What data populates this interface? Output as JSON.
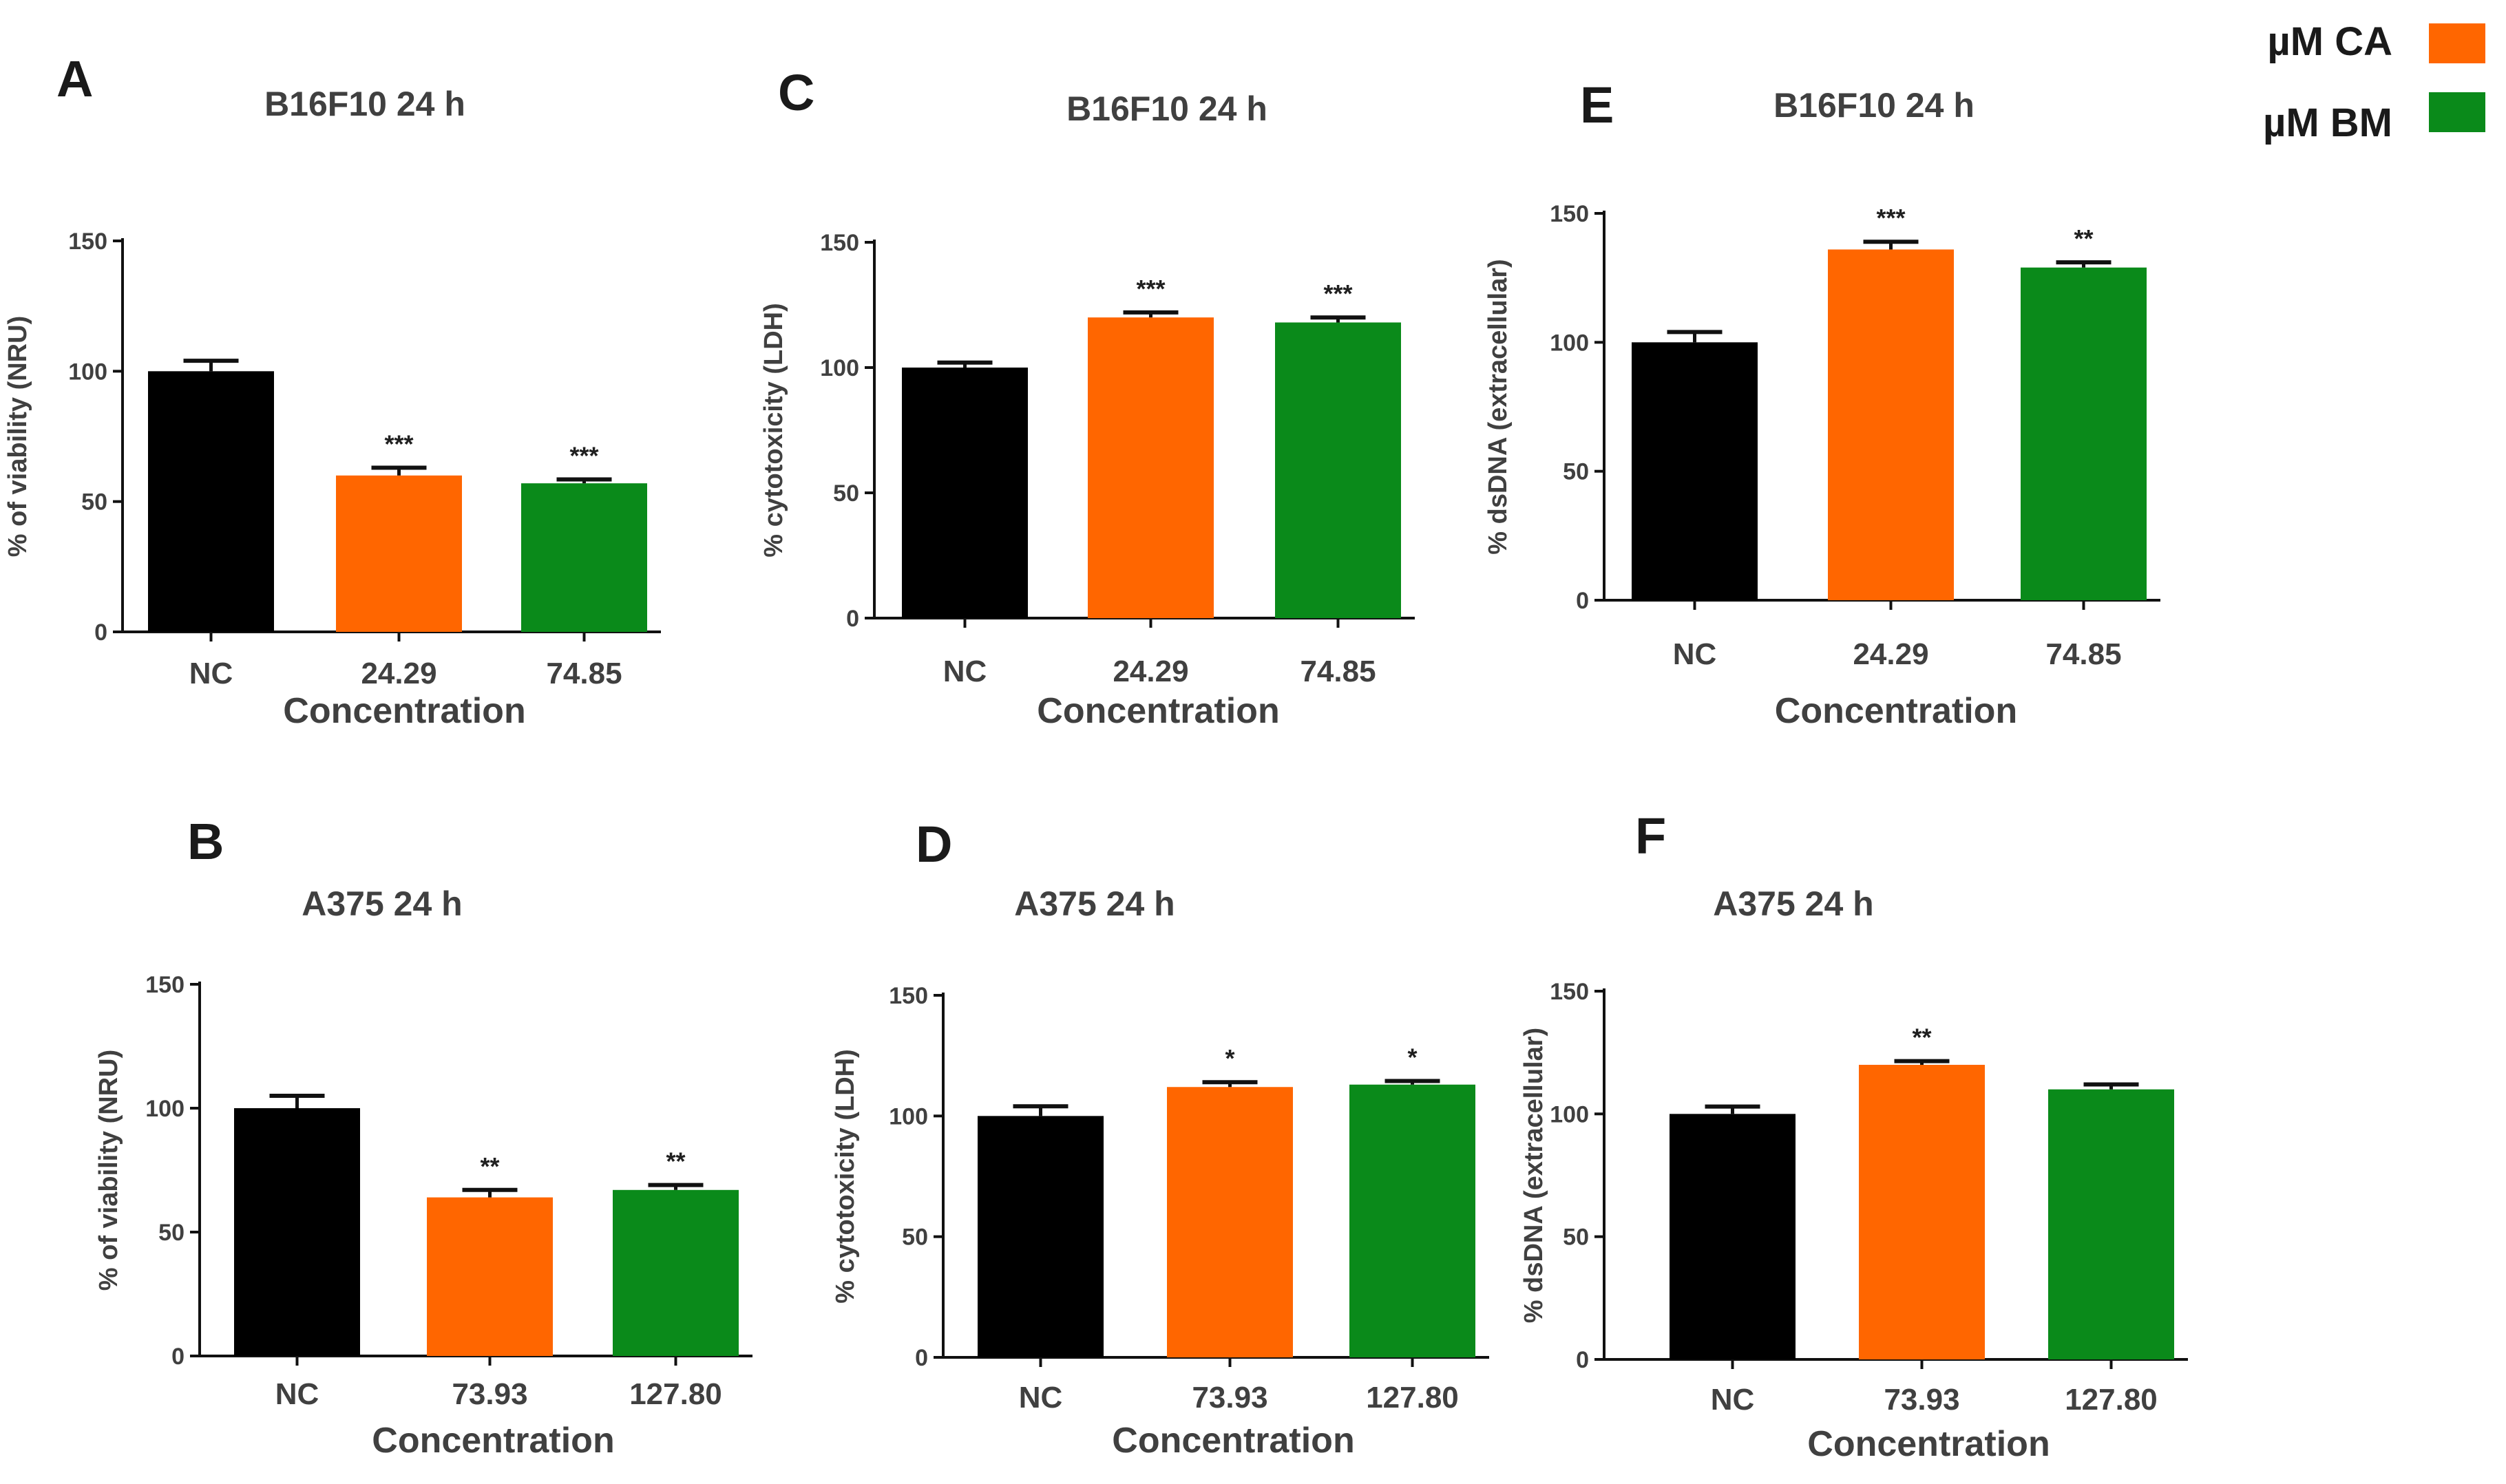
{
  "legend": [
    {
      "label": "µM CA",
      "color": "#ff6600"
    },
    {
      "label": "µM BM",
      "color": "#0a8a1a"
    }
  ],
  "chart_data": [
    {
      "panel": "A",
      "type": "bar",
      "title": "B16F10 24 h",
      "ylabel": "% of viability (NRU)",
      "xlabel": "Concentration",
      "ylim": [
        0,
        150
      ],
      "yticks": [
        "0",
        "50",
        "100",
        "150"
      ],
      "categories": [
        "NC",
        "24.29",
        "74.85"
      ],
      "values": [
        100,
        60,
        57
      ],
      "errors": [
        4,
        3,
        1.5
      ],
      "significance": [
        "",
        "***",
        "***"
      ],
      "colors": [
        "#000000",
        "#ff6600",
        "#0a8a1a"
      ]
    },
    {
      "panel": "C",
      "type": "bar",
      "title": "B16F10 24 h",
      "ylabel": "% cytotoxicity (LDH)",
      "xlabel": "Concentration",
      "ylim": [
        0,
        150
      ],
      "yticks": [
        "0",
        "50",
        "100",
        "150"
      ],
      "categories": [
        "NC",
        "24.29",
        "74.85"
      ],
      "values": [
        100,
        120,
        118
      ],
      "errors": [
        2,
        2,
        2
      ],
      "significance": [
        "",
        "***",
        "***"
      ],
      "colors": [
        "#000000",
        "#ff6600",
        "#0a8a1a"
      ]
    },
    {
      "panel": "E",
      "type": "bar",
      "title": "B16F10 24 h",
      "ylabel": "% dsDNA (extracellular)",
      "xlabel": "Concentration",
      "ylim": [
        0,
        150
      ],
      "yticks": [
        "0",
        "50",
        "100",
        "150"
      ],
      "categories": [
        "NC",
        "24.29",
        "74.85"
      ],
      "values": [
        100,
        136,
        129
      ],
      "errors": [
        4,
        3,
        2
      ],
      "significance": [
        "",
        "***",
        "**"
      ],
      "colors": [
        "#000000",
        "#ff6600",
        "#0a8a1a"
      ]
    },
    {
      "panel": "B",
      "type": "bar",
      "title": "A375 24 h",
      "ylabel": "% of viability (NRU)",
      "xlabel": "Concentration",
      "ylim": [
        0,
        150
      ],
      "yticks": [
        "0",
        "50",
        "100",
        "150"
      ],
      "categories": [
        "NC",
        "73.93",
        "127.80"
      ],
      "values": [
        100,
        64,
        67
      ],
      "errors": [
        5,
        3,
        2
      ],
      "significance": [
        "",
        "**",
        "**"
      ],
      "colors": [
        "#000000",
        "#ff6600",
        "#0a8a1a"
      ]
    },
    {
      "panel": "D",
      "type": "bar",
      "title": "A375 24 h",
      "ylabel": "% cytotoxicity (LDH)",
      "xlabel": "Concentration",
      "ylim": [
        0,
        150
      ],
      "yticks": [
        "0",
        "50",
        "100",
        "150"
      ],
      "categories": [
        "NC",
        "73.93",
        "127.80"
      ],
      "values": [
        100,
        112,
        113
      ],
      "errors": [
        4,
        2,
        1.5
      ],
      "significance": [
        "",
        "*",
        "*"
      ],
      "colors": [
        "#000000",
        "#ff6600",
        "#0a8a1a"
      ]
    },
    {
      "panel": "F",
      "type": "bar",
      "title": "A375 24 h",
      "ylabel": "% dsDNA (extracellular)",
      "xlabel": "Concentration",
      "ylim": [
        0,
        150
      ],
      "yticks": [
        "0",
        "50",
        "100",
        "150"
      ],
      "categories": [
        "NC",
        "73.93",
        "127.80"
      ],
      "values": [
        100,
        120,
        110
      ],
      "errors": [
        3,
        1.5,
        2
      ],
      "significance": [
        "",
        "**",
        ""
      ],
      "colors": [
        "#000000",
        "#ff6600",
        "#0a8a1a"
      ]
    }
  ]
}
